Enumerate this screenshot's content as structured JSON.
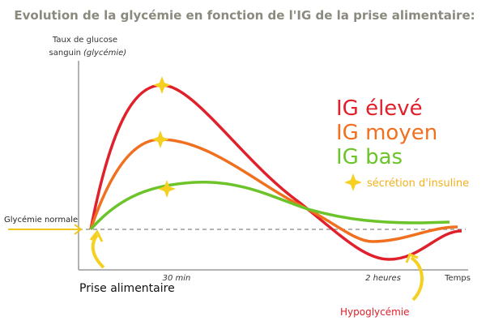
{
  "header": {
    "title": "Evolution de la glycémie en fonction de l'IG de la prise alimentaire:"
  },
  "y_axis": {
    "line1": "Taux de glucose",
    "line2": "sanguin",
    "line2_italic": "(glycémie)"
  },
  "x_axis": {
    "label": "Temps",
    "marks": [
      "30 min",
      "2 heures"
    ]
  },
  "reference": {
    "label": "Glycémie normale"
  },
  "legend": {
    "items": [
      "IG élevé",
      "IG moyen",
      "IG bas"
    ],
    "star_label": "sécrétion d'insuline"
  },
  "annotations": {
    "meal": "Prise alimentaire",
    "hypo": "Hypoglycémie"
  }
}
